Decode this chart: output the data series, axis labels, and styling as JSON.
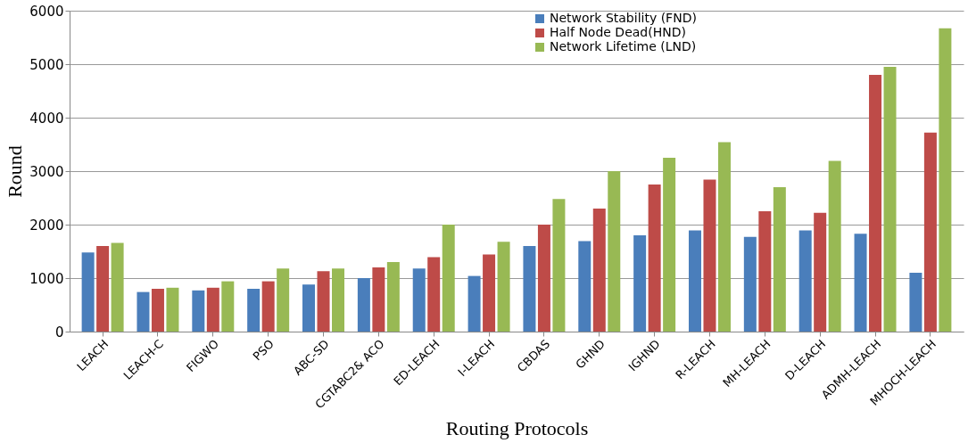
{
  "chart_data": {
    "type": "bar",
    "xlabel": "Routing Protocols",
    "ylabel": "Round",
    "categories": [
      "LEACH",
      "LEACH-C",
      "FIGWO",
      "PSO",
      "ABC-SD",
      "CGTABC2& ACO",
      "ED-LEACH",
      "I-LEACH",
      "CBDAS",
      "GHND",
      "IGHND",
      "R-LEACH",
      "MH-LEACH",
      "D-LEACH",
      "ADMH-LEACH",
      "MHOCH-LEACH"
    ],
    "series": [
      {
        "name": "Network Stability (FND)",
        "color": "#4a7ebb",
        "values": [
          1480,
          740,
          770,
          800,
          880,
          1000,
          1180,
          1040,
          1600,
          1690,
          1800,
          1890,
          1770,
          1890,
          1830,
          1100
        ]
      },
      {
        "name": "Half Node Dead(HND)",
        "color": "#be4b48",
        "values": [
          1600,
          800,
          820,
          940,
          1130,
          1200,
          1390,
          1440,
          2000,
          2300,
          2750,
          2840,
          2250,
          2220,
          4800,
          3720
        ]
      },
      {
        "name": "Network Lifetime (LND)",
        "color": "#98b954",
        "values": [
          1660,
          820,
          940,
          1180,
          1180,
          1300,
          2000,
          1680,
          2480,
          3000,
          3250,
          3540,
          2700,
          3190,
          4950,
          5670
        ]
      }
    ],
    "ylim": [
      0,
      6000
    ],
    "yticks": [
      0,
      1000,
      2000,
      3000,
      4000,
      5000,
      6000
    ],
    "grid": "y",
    "legend": "top"
  }
}
